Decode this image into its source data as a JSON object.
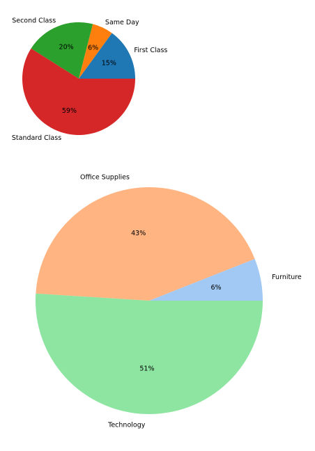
{
  "chart_data": [
    {
      "type": "pie",
      "title": "",
      "start_angle_deg": 0,
      "direction": "counterclockwise",
      "categories": [
        "First Class",
        "Same Day",
        "Second Class",
        "Standard Class"
      ],
      "values": [
        15,
        6,
        20,
        59
      ],
      "value_labels": [
        "15%",
        "6%",
        "20%",
        "59%"
      ],
      "colors": [
        "#1f77b4",
        "#ff7f0e",
        "#2ca02c",
        "#d62728"
      ]
    },
    {
      "type": "pie",
      "title": "",
      "start_angle_deg": 0,
      "direction": "counterclockwise",
      "categories": [
        "Furniture",
        "Office Supplies",
        "Technology"
      ],
      "values": [
        6,
        43,
        51
      ],
      "value_labels": [
        "6%",
        "43%",
        "51%"
      ],
      "colors": [
        "#a1c9f4",
        "#ffb482",
        "#8de5a1"
      ]
    }
  ]
}
